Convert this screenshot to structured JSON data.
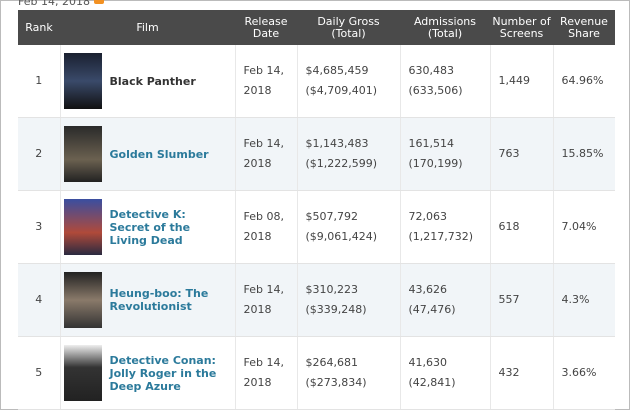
{
  "header": {
    "date": "Feb 14, 2018"
  },
  "table": {
    "columns": [
      "Rank",
      "Film",
      "Release\nDate",
      "Daily Gross\n(Total)",
      "Admissions\n(Total)",
      "Number of\nScreens",
      "Revenue\nShare"
    ],
    "rows": [
      [
        "1",
        "Black Panther",
        "Feb 14,\n2018",
        "$4,685,459",
        "($4,709,401)",
        "630,483",
        "(633,506)",
        "1,449",
        "64.96%"
      ],
      [
        "2",
        "Golden Slumber",
        "Feb 14,\n2018",
        "$1,143,483",
        "($1,222,599)",
        "161,514",
        "(170,199)",
        "763",
        "15.85%"
      ],
      [
        "3",
        "Detective K: Secret of the Living Dead",
        "Feb 08,\n2018",
        "$507,792",
        "($9,061,424)",
        "72,063",
        "(1,217,732)",
        "618",
        "7.04%"
      ],
      [
        "4",
        "Heung-boo: The Revolutionist",
        "Feb 14,\n2018",
        "$310,223",
        "($339,248)",
        "43,626",
        "(47,476)",
        "557",
        "4.3%"
      ],
      [
        "5",
        "Detective Conan: Jolly Roger in the Deep Azure",
        "Feb 14,\n2018",
        "$264,681",
        "($273,834)",
        "41,630",
        "(42,841)",
        "432",
        "3.66%"
      ]
    ]
  }
}
